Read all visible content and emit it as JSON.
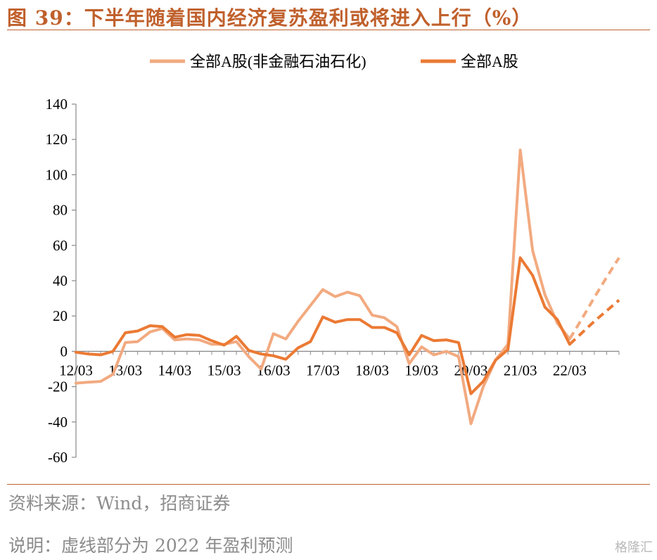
{
  "header": {
    "title": "图 39：下半年随着国内经济复苏盈利或将进入上行（%）"
  },
  "footer": {
    "source": "资料来源：Wind，招商证券",
    "note": "说明：虚线部分为 2022 年盈利预测",
    "watermark": "格隆汇"
  },
  "colors": {
    "accent": "#c0602c",
    "series_light": "#f2aa80",
    "series_dark": "#eb7a34",
    "axis": "#888888"
  },
  "chart_data": {
    "type": "line",
    "xlabel": "",
    "ylabel": "",
    "ylim": [
      -60,
      140
    ],
    "yticks": [
      -60,
      -40,
      -20,
      0,
      20,
      40,
      60,
      80,
      100,
      120,
      140
    ],
    "xtick_labels": [
      "12/03",
      "13/03",
      "14/03",
      "15/03",
      "16/03",
      "17/03",
      "18/03",
      "19/03",
      "20/03",
      "21/03",
      "22/03"
    ],
    "xtick_positions": [
      0,
      4,
      8,
      12,
      16,
      20,
      24,
      28,
      32,
      36,
      40
    ],
    "grid": false,
    "legend": "top-center",
    "series": [
      {
        "name": "全部A股(非金融石油石化)",
        "color": "#f2aa80",
        "values": [
          -18,
          -17.5,
          -17,
          -13,
          5,
          5.5,
          11,
          13,
          6.5,
          7,
          6.5,
          4,
          4,
          5.5,
          -3,
          -10,
          10,
          7,
          17,
          26,
          35,
          31,
          33.5,
          31.5,
          20.5,
          19,
          14,
          -7,
          2.5,
          -2,
          0,
          -3,
          -41,
          -20,
          -5,
          4,
          114,
          57,
          32,
          16,
          7
        ],
        "forecast": [
          7,
          18.5,
          30.5,
          42,
          53
        ]
      },
      {
        "name": "全部A股",
        "color": "#eb7a34",
        "values": [
          -0.5,
          -1.5,
          -2,
          0,
          10.5,
          11.5,
          14.5,
          14,
          8,
          9.5,
          9,
          6,
          3.5,
          8.5,
          0.5,
          -1.5,
          -2.5,
          -4.5,
          2,
          5.5,
          19.5,
          16.5,
          18,
          18,
          13.5,
          13.5,
          10.5,
          -2,
          9,
          6,
          6.5,
          5,
          -24,
          -17,
          -5,
          1,
          53,
          43,
          25,
          18,
          4
        ],
        "forecast": [
          4,
          10.5,
          17,
          23,
          29
        ]
      }
    ]
  }
}
